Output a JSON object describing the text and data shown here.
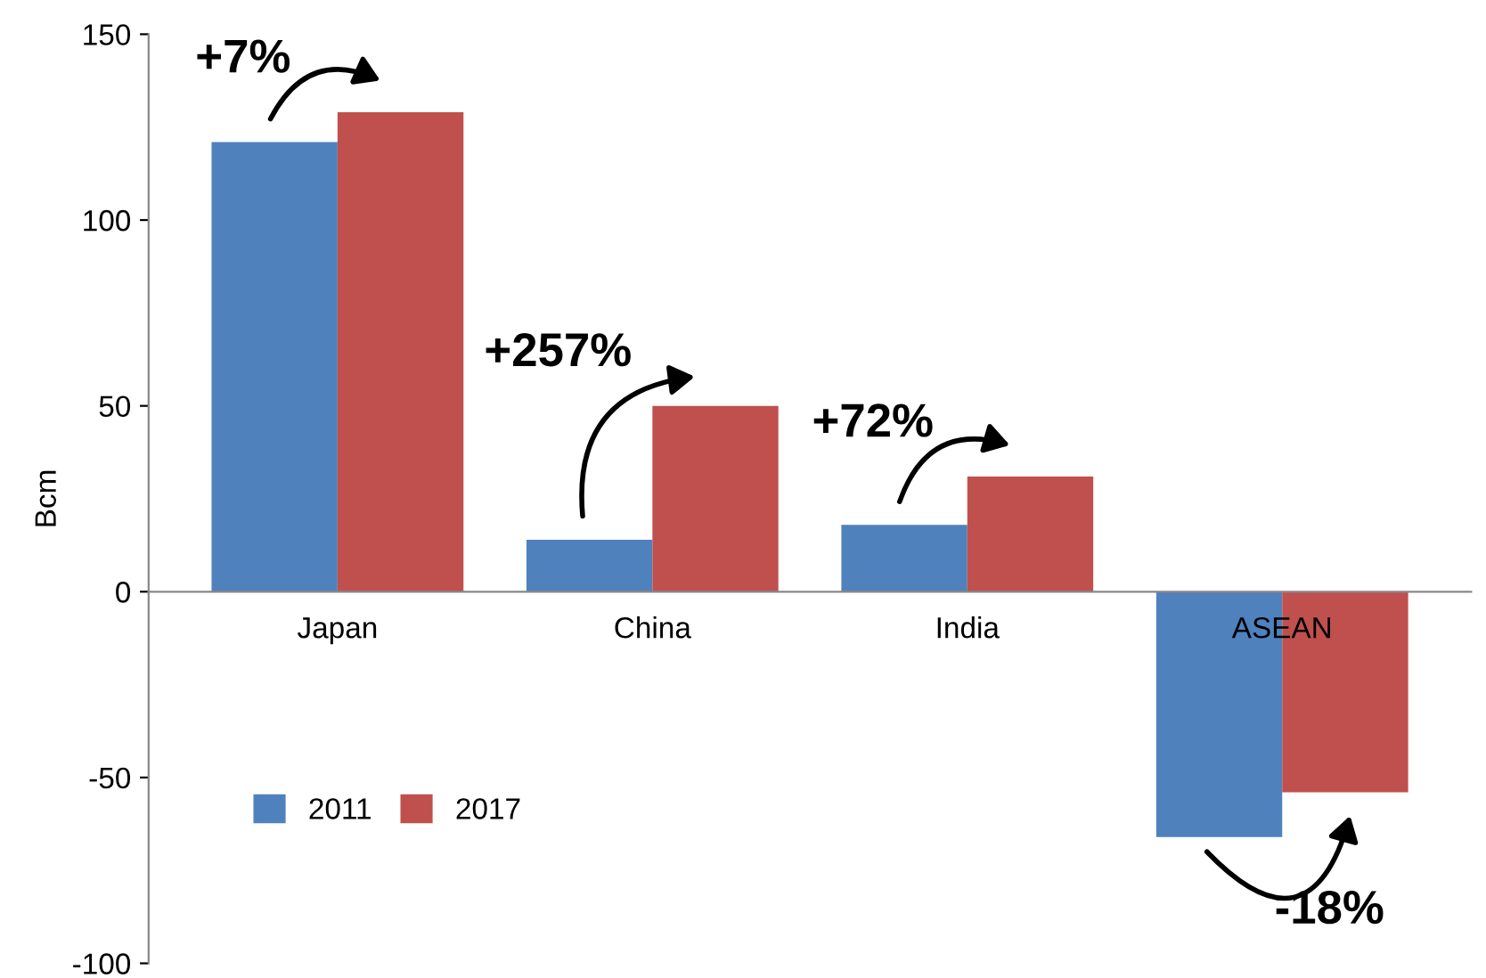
{
  "chart_data": {
    "type": "bar",
    "ylabel": "Bcm",
    "categories": [
      "Japan",
      "China",
      "India",
      "ASEAN"
    ],
    "series": [
      {
        "name": "2011",
        "color": "#4f81bd",
        "values": [
          121,
          14,
          18,
          -66
        ]
      },
      {
        "name": "2017",
        "color": "#c0504d",
        "values": [
          129,
          50,
          31,
          -54
        ]
      }
    ],
    "ylim": [
      -100,
      150
    ],
    "yticks": [
      -100,
      -50,
      0,
      50,
      100,
      150
    ],
    "annotations": [
      "+7%",
      "+257%",
      "+72%",
      "-18%"
    ],
    "legend": "bottom left",
    "grid": false
  }
}
